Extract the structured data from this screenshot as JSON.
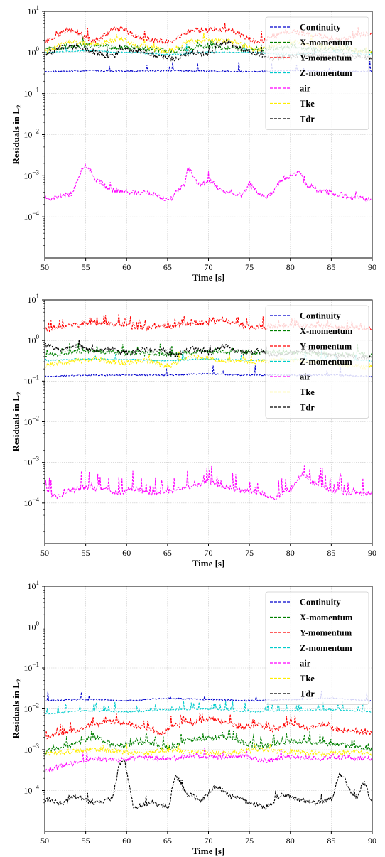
{
  "chart_data": [
    {
      "type": "line",
      "xlabel": "Time [s]",
      "ylabel": "Residuals in L",
      "ylabel_sub": "2",
      "xlim": [
        50,
        90
      ],
      "ylim": [
        1e-05,
        10
      ],
      "yscale": "log",
      "grid": true,
      "legend": "top-right",
      "x_ticks": [
        50,
        55,
        60,
        65,
        70,
        75,
        80,
        85,
        90
      ],
      "y_ticks": [
        {
          "base": "10",
          "exp": "−4",
          "value": 0.0001
        },
        {
          "base": "10",
          "exp": "−3",
          "value": 0.001
        },
        {
          "base": "10",
          "exp": "−2",
          "value": 0.01
        },
        {
          "base": "10",
          "exp": "−1",
          "value": 0.1
        },
        {
          "base": "10",
          "exp": "0",
          "value": 1
        },
        {
          "base": "10",
          "exp": "1",
          "value": 10
        }
      ],
      "series": [
        {
          "name": "Continuity",
          "color": "#0000cc",
          "line": "dashed",
          "x": [
            50,
            55,
            60,
            65,
            70,
            75,
            80,
            85,
            90
          ],
          "y": [
            0.34,
            0.36,
            0.35,
            0.36,
            0.35,
            0.34,
            0.36,
            0.35,
            0.35
          ]
        },
        {
          "name": "X-momentum",
          "color": "#008000",
          "line": "dashed",
          "x": [
            50,
            55,
            60,
            65,
            70,
            75,
            80,
            85,
            90
          ],
          "y": [
            1.2,
            1.5,
            1.3,
            1.1,
            1.4,
            1.2,
            1.3,
            1.2,
            1.1
          ]
        },
        {
          "name": "Y-momentum",
          "color": "#ff0000",
          "line": "dashed",
          "x": [
            50,
            53,
            56,
            59,
            62,
            65,
            68,
            72,
            76,
            80,
            83,
            86,
            90
          ],
          "y": [
            1.9,
            3.5,
            2.0,
            3.9,
            2.2,
            1.8,
            3.4,
            3.6,
            1.9,
            3.3,
            2.6,
            2.1,
            3.0
          ]
        },
        {
          "name": "Z-momentum",
          "color": "#00cccc",
          "line": "dashed",
          "x": [
            50,
            55,
            60,
            65,
            70,
            75,
            80,
            85,
            90
          ],
          "y": [
            1.0,
            1.1,
            1.0,
            0.9,
            1.0,
            1.0,
            0.9,
            1.0,
            0.9
          ]
        },
        {
          "name": "air",
          "color": "#ff00ff",
          "line": "dashed",
          "x": [
            50,
            53,
            55,
            56.5,
            58,
            60,
            63,
            65,
            67,
            67.5,
            69,
            70,
            72,
            74,
            75,
            77,
            79.5,
            81,
            82,
            84,
            86,
            88,
            90
          ],
          "y": [
            0.00028,
            0.00034,
            0.00175,
            0.00075,
            0.00045,
            0.0004,
            0.00037,
            0.00026,
            0.00055,
            0.0015,
            0.0006,
            0.00075,
            0.00042,
            0.00035,
            0.00055,
            0.0003,
            0.0009,
            0.0012,
            0.0006,
            0.0004,
            0.00035,
            0.0003,
            0.00026
          ]
        },
        {
          "name": "Tke",
          "color": "#ffee00",
          "line": "dashed",
          "x": [
            50,
            53,
            56,
            59,
            62,
            65,
            68,
            72,
            76,
            80,
            83,
            86,
            90
          ],
          "y": [
            1.1,
            1.8,
            1.6,
            2.1,
            1.4,
            1.1,
            1.9,
            2.0,
            1.2,
            1.8,
            1.5,
            1.3,
            1.0
          ]
        },
        {
          "name": "Tdr",
          "color": "#000000",
          "line": "dashed",
          "x": [
            50,
            52,
            54,
            56,
            58,
            60,
            62,
            64,
            66,
            68,
            70,
            72,
            74,
            76,
            78,
            80,
            82,
            84,
            86,
            88,
            90
          ],
          "y": [
            0.9,
            1.3,
            1.4,
            1.0,
            0.8,
            1.2,
            1.1,
            0.8,
            0.7,
            1.0,
            0.9,
            1.8,
            1.2,
            0.9,
            0.7,
            0.8,
            0.9,
            0.8,
            0.75,
            0.8,
            0.7
          ]
        }
      ]
    },
    {
      "type": "line",
      "xlabel": "Time [s]",
      "ylabel": "Residuals in L",
      "ylabel_sub": "2",
      "xlim": [
        50,
        90
      ],
      "ylim": [
        1e-05,
        10
      ],
      "yscale": "log",
      "grid": true,
      "legend": "top-right",
      "x_ticks": [
        50,
        55,
        60,
        65,
        70,
        75,
        80,
        85,
        90
      ],
      "y_ticks": [
        {
          "base": "10",
          "exp": "−4",
          "value": 0.0001
        },
        {
          "base": "10",
          "exp": "−3",
          "value": 0.001
        },
        {
          "base": "10",
          "exp": "−2",
          "value": 0.01
        },
        {
          "base": "10",
          "exp": "−1",
          "value": 0.1
        },
        {
          "base": "10",
          "exp": "0",
          "value": 1
        },
        {
          "base": "10",
          "exp": "1",
          "value": 10
        }
      ],
      "series": [
        {
          "name": "Continuity",
          "color": "#0000cc",
          "line": "dashed",
          "x": [
            50,
            55,
            60,
            65,
            70,
            75,
            80,
            85,
            90
          ],
          "y": [
            0.13,
            0.14,
            0.14,
            0.14,
            0.15,
            0.14,
            0.14,
            0.14,
            0.13
          ]
        },
        {
          "name": "X-momentum",
          "color": "#008000",
          "line": "dashed",
          "x": [
            50,
            55,
            60,
            65,
            70,
            75,
            80,
            85,
            90
          ],
          "y": [
            0.45,
            0.55,
            0.5,
            0.45,
            0.55,
            0.5,
            0.5,
            0.45,
            0.45
          ]
        },
        {
          "name": "Y-momentum",
          "color": "#ff0000",
          "line": "dashed",
          "x": [
            50,
            53,
            56,
            59,
            62,
            65,
            68,
            72,
            76,
            80,
            84,
            87,
            90
          ],
          "y": [
            1.8,
            2.3,
            2.8,
            2.5,
            2.0,
            2.2,
            2.6,
            3.0,
            2.0,
            2.4,
            2.2,
            2.0,
            2.0
          ]
        },
        {
          "name": "Z-momentum",
          "color": "#00cccc",
          "line": "dashed",
          "x": [
            50,
            55,
            60,
            65,
            70,
            75,
            80,
            85,
            90
          ],
          "y": [
            0.32,
            0.35,
            0.34,
            0.32,
            0.35,
            0.33,
            0.34,
            0.33,
            0.32
          ]
        },
        {
          "name": "air",
          "color": "#ff00ff",
          "line": "dashed",
          "x": [
            50,
            52,
            53,
            55,
            57,
            59,
            61,
            63,
            65,
            67,
            69,
            70,
            72,
            74,
            76,
            78,
            80,
            81.5,
            83,
            85,
            87,
            89,
            90
          ],
          "y": [
            0.00018,
            0.00014,
            0.0002,
            0.00024,
            0.00022,
            0.00018,
            0.00022,
            0.00017,
            0.00018,
            0.00024,
            0.0003,
            0.00034,
            0.00024,
            0.0002,
            0.00018,
            0.00013,
            0.00022,
            0.0005,
            0.0003,
            0.0002,
            0.00018,
            0.00017,
            0.00018
          ]
        },
        {
          "name": "Tke",
          "color": "#ffee00",
          "line": "dashed",
          "x": [
            50,
            53,
            56,
            59,
            62,
            65,
            68,
            72,
            76,
            80,
            84,
            87,
            90
          ],
          "y": [
            0.25,
            0.3,
            0.35,
            0.28,
            0.32,
            0.24,
            0.4,
            0.32,
            0.3,
            0.34,
            0.28,
            0.25,
            0.22
          ]
        },
        {
          "name": "Tdr",
          "color": "#000000",
          "line": "dashed",
          "x": [
            50,
            52,
            54,
            56,
            58,
            60,
            62,
            64,
            66,
            68,
            70,
            72,
            74,
            76,
            78,
            80,
            82,
            84,
            86,
            88,
            90
          ],
          "y": [
            0.8,
            0.6,
            0.7,
            0.55,
            0.6,
            0.5,
            0.6,
            0.55,
            0.45,
            0.6,
            0.5,
            0.7,
            0.5,
            0.55,
            0.45,
            0.5,
            0.55,
            0.45,
            0.42,
            0.4,
            0.38
          ]
        }
      ]
    },
    {
      "type": "line",
      "xlabel": "Time [s]",
      "ylabel": "Residuals in L",
      "ylabel_sub": "2",
      "xlim": [
        50,
        90
      ],
      "ylim": [
        1e-05,
        10
      ],
      "yscale": "log",
      "grid": true,
      "legend": "top-right",
      "x_ticks": [
        50,
        55,
        60,
        65,
        70,
        75,
        80,
        85,
        90
      ],
      "y_ticks": [
        {
          "base": "10",
          "exp": "−4",
          "value": 0.0001
        },
        {
          "base": "10",
          "exp": "−3",
          "value": 0.001
        },
        {
          "base": "10",
          "exp": "−2",
          "value": 0.01
        },
        {
          "base": "10",
          "exp": "−1",
          "value": 0.1
        },
        {
          "base": "10",
          "exp": "0",
          "value": 1
        },
        {
          "base": "10",
          "exp": "1",
          "value": 10
        }
      ],
      "series": [
        {
          "name": "Continuity",
          "color": "#0000cc",
          "line": "dashed",
          "x": [
            50,
            55,
            60,
            65,
            70,
            75,
            80,
            85,
            90
          ],
          "y": [
            0.016,
            0.017,
            0.016,
            0.018,
            0.017,
            0.016,
            0.017,
            0.018,
            0.016
          ]
        },
        {
          "name": "X-momentum",
          "color": "#008000",
          "line": "dashed",
          "x": [
            50,
            53,
            56,
            59,
            62,
            65,
            68,
            72,
            76,
            80,
            84,
            87,
            90
          ],
          "y": [
            0.0009,
            0.0013,
            0.002,
            0.0012,
            0.0015,
            0.0011,
            0.0018,
            0.002,
            0.0012,
            0.0016,
            0.0014,
            0.0012,
            0.001
          ]
        },
        {
          "name": "Y-momentum",
          "color": "#ff0000",
          "line": "dashed",
          "x": [
            50,
            52,
            54,
            56,
            58,
            60,
            62,
            64,
            66,
            68,
            70,
            72,
            74,
            76,
            78,
            80,
            82,
            84,
            86,
            88,
            90
          ],
          "y": [
            0.002,
            0.0025,
            0.003,
            0.004,
            0.005,
            0.0045,
            0.0035,
            0.0025,
            0.004,
            0.0045,
            0.0055,
            0.005,
            0.0035,
            0.004,
            0.0032,
            0.0045,
            0.0035,
            0.004,
            0.003,
            0.0028,
            0.0025
          ]
        },
        {
          "name": "Z-momentum",
          "color": "#00cccc",
          "line": "dashed",
          "x": [
            50,
            55,
            60,
            65,
            70,
            75,
            80,
            85,
            90
          ],
          "y": [
            0.0075,
            0.009,
            0.0085,
            0.0095,
            0.01,
            0.0085,
            0.009,
            0.0095,
            0.0085
          ]
        },
        {
          "name": "air",
          "color": "#ff00ff",
          "line": "dashed",
          "x": [
            50,
            53,
            56,
            59,
            62,
            65,
            68,
            71,
            74,
            77,
            80,
            83,
            86,
            90
          ],
          "y": [
            0.0003,
            0.00045,
            0.0006,
            0.00055,
            0.00065,
            0.0006,
            0.0007,
            0.00065,
            0.0007,
            0.00055,
            0.0007,
            0.0006,
            0.00065,
            0.0006
          ]
        },
        {
          "name": "Tke",
          "color": "#ffee00",
          "line": "dashed",
          "x": [
            50,
            53,
            56,
            59,
            62,
            65,
            68,
            72,
            76,
            80,
            84,
            87,
            90
          ],
          "y": [
            0.0008,
            0.0009,
            0.001,
            0.0009,
            0.0008,
            0.001,
            0.0009,
            0.0008,
            0.001,
            0.0009,
            0.0008,
            0.0009,
            0.0008
          ]
        },
        {
          "name": "Tdr",
          "color": "#000000",
          "line": "dashed",
          "x": [
            50,
            52,
            54,
            56,
            58,
            59.5,
            61,
            63,
            65,
            66,
            67.5,
            69,
            71,
            73,
            75,
            77,
            79,
            81,
            83,
            85,
            86,
            88,
            89,
            90
          ],
          "y": [
            6e-05,
            5e-05,
            7e-05,
            5e-05,
            6e-05,
            0.0006,
            4e-05,
            5e-05,
            4e-05,
            0.00022,
            8e-05,
            6e-05,
            0.00012,
            7e-05,
            5e-05,
            4e-05,
            8e-05,
            6e-05,
            5e-05,
            6e-05,
            0.00025,
            7e-05,
            0.00015,
            5e-05
          ]
        }
      ]
    }
  ]
}
